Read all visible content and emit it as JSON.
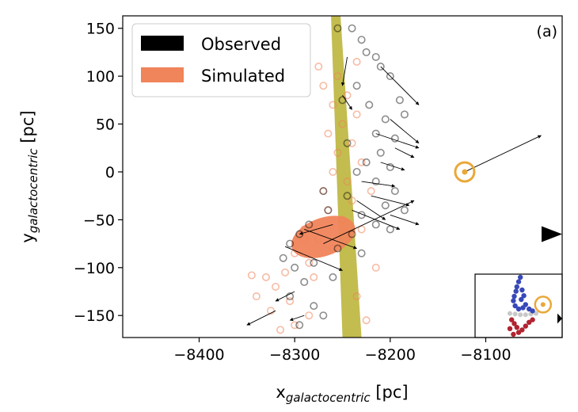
{
  "chart_data": {
    "type": "scatter",
    "panel_label": "(a)",
    "xlabel": {
      "main": "x",
      "subscript": "galactocentric",
      "unit": " [pc]"
    },
    "ylabel": {
      "main": "y",
      "subscript": "galactocentric",
      "unit": " [pc]"
    },
    "xlim": [
      -8480,
      -8020
    ],
    "ylim": [
      -173,
      163
    ],
    "xticks": [
      -8400,
      -8300,
      -8200,
      -8100
    ],
    "xtick_labels": [
      "−8400",
      "−8300",
      "−8200",
      "−8100"
    ],
    "yticks": [
      150,
      100,
      50,
      0,
      -50,
      -100,
      -150
    ],
    "ytick_labels": [
      "150",
      "100",
      "50",
      "0",
      "−50",
      "−100",
      "−150"
    ],
    "grid": false,
    "legend_position": "top-left",
    "colors": {
      "observed": "#000000",
      "simulated": "#f0845a",
      "band": "#b8b030",
      "sun_marker": "#eaa83a",
      "inset_blue": "#3848b8",
      "inset_red": "#b02430",
      "inset_grey": "#c8c8c8"
    },
    "series": [
      {
        "name": "Observed",
        "color": "#000000",
        "points": [
          {
            "x": -8255,
            "y": 150
          },
          {
            "x": -8240,
            "y": 150
          },
          {
            "x": -8230,
            "y": 138
          },
          {
            "x": -8225,
            "y": 125
          },
          {
            "x": -8215,
            "y": 120
          },
          {
            "x": -8210,
            "y": 110
          },
          {
            "x": -8200,
            "y": 100
          },
          {
            "x": -8190,
            "y": 75
          },
          {
            "x": -8185,
            "y": 60
          },
          {
            "x": -8205,
            "y": 55
          },
          {
            "x": -8215,
            "y": 40
          },
          {
            "x": -8195,
            "y": 35
          },
          {
            "x": -8210,
            "y": 20
          },
          {
            "x": -8225,
            "y": 10
          },
          {
            "x": -8200,
            "y": 5
          },
          {
            "x": -8235,
            "y": 0
          },
          {
            "x": -8215,
            "y": -10
          },
          {
            "x": -8195,
            "y": -20
          },
          {
            "x": -8245,
            "y": -25
          },
          {
            "x": -8205,
            "y": -35
          },
          {
            "x": -8265,
            "y": -40
          },
          {
            "x": -8230,
            "y": -45
          },
          {
            "x": -8285,
            "y": -55
          },
          {
            "x": -8215,
            "y": -55
          },
          {
            "x": -8295,
            "y": -65
          },
          {
            "x": -8240,
            "y": -65
          },
          {
            "x": -8305,
            "y": -75
          },
          {
            "x": -8255,
            "y": -80
          },
          {
            "x": -8280,
            "y": -95
          },
          {
            "x": -8300,
            "y": -100
          },
          {
            "x": -8290,
            "y": -115
          },
          {
            "x": -8305,
            "y": -130
          },
          {
            "x": -8280,
            "y": -140
          },
          {
            "x": -8295,
            "y": -160
          },
          {
            "x": -8270,
            "y": -150
          },
          {
            "x": -8250,
            "y": 75
          },
          {
            "x": -8235,
            "y": 90
          },
          {
            "x": -8222,
            "y": 70
          },
          {
            "x": -8245,
            "y": 30
          },
          {
            "x": -8185,
            "y": -40
          },
          {
            "x": -8200,
            "y": -60
          },
          {
            "x": -8230,
            "y": -85
          },
          {
            "x": -8260,
            "y": -110
          },
          {
            "x": -8312,
            "y": -90
          },
          {
            "x": -8270,
            "y": -20
          }
        ]
      },
      {
        "name": "Simulated",
        "color": "#f0845a",
        "points": [
          {
            "x": -8255,
            "y": 100
          },
          {
            "x": -8270,
            "y": 90
          },
          {
            "x": -8245,
            "y": 80
          },
          {
            "x": -8260,
            "y": 70
          },
          {
            "x": -8235,
            "y": 60
          },
          {
            "x": -8250,
            "y": 50
          },
          {
            "x": -8265,
            "y": 40
          },
          {
            "x": -8240,
            "y": 30
          },
          {
            "x": -8255,
            "y": 20
          },
          {
            "x": -8230,
            "y": 10
          },
          {
            "x": -8260,
            "y": 0
          },
          {
            "x": -8245,
            "y": -10
          },
          {
            "x": -8270,
            "y": -20
          },
          {
            "x": -8240,
            "y": -30
          },
          {
            "x": -8265,
            "y": -40
          },
          {
            "x": -8250,
            "y": -50
          },
          {
            "x": -8290,
            "y": -60
          },
          {
            "x": -8275,
            "y": -70
          },
          {
            "x": -8260,
            "y": -80
          },
          {
            "x": -8300,
            "y": -85
          },
          {
            "x": -8285,
            "y": -95
          },
          {
            "x": -8310,
            "y": -105
          },
          {
            "x": -8330,
            "y": -110
          },
          {
            "x": -8345,
            "y": -108
          },
          {
            "x": -8320,
            "y": -120
          },
          {
            "x": -8305,
            "y": -135
          },
          {
            "x": -8325,
            "y": -145
          },
          {
            "x": -8285,
            "y": -150
          },
          {
            "x": -8300,
            "y": -160
          },
          {
            "x": -8315,
            "y": -165
          },
          {
            "x": -8225,
            "y": -155
          },
          {
            "x": -8235,
            "y": -130
          },
          {
            "x": -8215,
            "y": -100
          },
          {
            "x": -8230,
            "y": -60
          },
          {
            "x": -8220,
            "y": -20
          },
          {
            "x": -8235,
            "y": 115
          },
          {
            "x": -8275,
            "y": 110
          },
          {
            "x": -8290,
            "y": -70
          },
          {
            "x": -8280,
            "y": -110
          },
          {
            "x": -8340,
            "y": -130
          }
        ]
      }
    ],
    "dense_core": {
      "x": -8270,
      "y": -68
    },
    "band": {
      "top": [
        -8257,
        163
      ],
      "bottom": [
        -8240,
        -173
      ]
    },
    "vectors": [
      {
        "x": -8122,
        "y": 0,
        "dx": 80,
        "dy": 38
      },
      {
        "x": -8270,
        "y": -75,
        "dx": 95,
        "dy": 45
      },
      {
        "x": -8210,
        "y": 110,
        "dx": 40,
        "dy": -40
      },
      {
        "x": -8200,
        "y": 55,
        "dx": 30,
        "dy": -25
      },
      {
        "x": -8215,
        "y": 40,
        "dx": 45,
        "dy": -15
      },
      {
        "x": -8195,
        "y": 25,
        "dx": 20,
        "dy": -10
      },
      {
        "x": -8210,
        "y": 10,
        "dx": 25,
        "dy": -8
      },
      {
        "x": -8230,
        "y": -10,
        "dx": 35,
        "dy": -5
      },
      {
        "x": -8220,
        "y": -25,
        "dx": 40,
        "dy": -10
      },
      {
        "x": -8240,
        "y": -40,
        "dx": 50,
        "dy": -20
      },
      {
        "x": -8290,
        "y": -60,
        "dx": 55,
        "dy": -20
      },
      {
        "x": -8310,
        "y": -78,
        "dx": 60,
        "dy": -25
      },
      {
        "x": -8260,
        "y": -55,
        "dx": -35,
        "dy": -10
      },
      {
        "x": -8300,
        "y": -125,
        "dx": -20,
        "dy": -10
      },
      {
        "x": -8290,
        "y": -150,
        "dx": -15,
        "dy": -5
      },
      {
        "x": -8320,
        "y": -145,
        "dx": -30,
        "dy": -15
      },
      {
        "x": -8235,
        "y": -30,
        "dx": 30,
        "dy": -20
      },
      {
        "x": -8250,
        "y": 80,
        "dx": 10,
        "dy": -15
      },
      {
        "x": -8245,
        "y": 120,
        "dx": -5,
        "dy": -30
      },
      {
        "x": -8200,
        "y": -45,
        "dx": 30,
        "dy": -10
      }
    ],
    "sun": {
      "x": -8122,
      "y": 0
    },
    "edge_arrow": {
      "y": -65
    },
    "inset": {
      "sun": {
        "u": 0.78,
        "v": 0.48
      },
      "blue": [
        {
          "u": 0.52,
          "v": 0.05
        },
        {
          "u": 0.5,
          "v": 0.12
        },
        {
          "u": 0.48,
          "v": 0.2
        },
        {
          "u": 0.47,
          "v": 0.27
        },
        {
          "u": 0.45,
          "v": 0.35
        },
        {
          "u": 0.44,
          "v": 0.42
        },
        {
          "u": 0.46,
          "v": 0.5
        },
        {
          "u": 0.5,
          "v": 0.55
        },
        {
          "u": 0.55,
          "v": 0.53
        },
        {
          "u": 0.58,
          "v": 0.48
        },
        {
          "u": 0.53,
          "v": 0.4
        },
        {
          "u": 0.56,
          "v": 0.34
        },
        {
          "u": 0.54,
          "v": 0.25
        },
        {
          "u": 0.62,
          "v": 0.55
        },
        {
          "u": 0.66,
          "v": 0.58
        }
      ],
      "red": [
        {
          "u": 0.42,
          "v": 0.72
        },
        {
          "u": 0.45,
          "v": 0.78
        },
        {
          "u": 0.48,
          "v": 0.84
        },
        {
          "u": 0.5,
          "v": 0.92
        },
        {
          "u": 0.54,
          "v": 0.88
        },
        {
          "u": 0.58,
          "v": 0.82
        },
        {
          "u": 0.62,
          "v": 0.76
        },
        {
          "u": 0.66,
          "v": 0.72
        },
        {
          "u": 0.44,
          "v": 0.95
        },
        {
          "u": 0.4,
          "v": 0.86
        }
      ],
      "grey": [
        {
          "u": 0.4,
          "v": 0.62
        },
        {
          "u": 0.46,
          "v": 0.63
        },
        {
          "u": 0.52,
          "v": 0.64
        },
        {
          "u": 0.58,
          "v": 0.64
        },
        {
          "u": 0.64,
          "v": 0.63
        },
        {
          "u": 0.7,
          "v": 0.62
        }
      ]
    }
  }
}
